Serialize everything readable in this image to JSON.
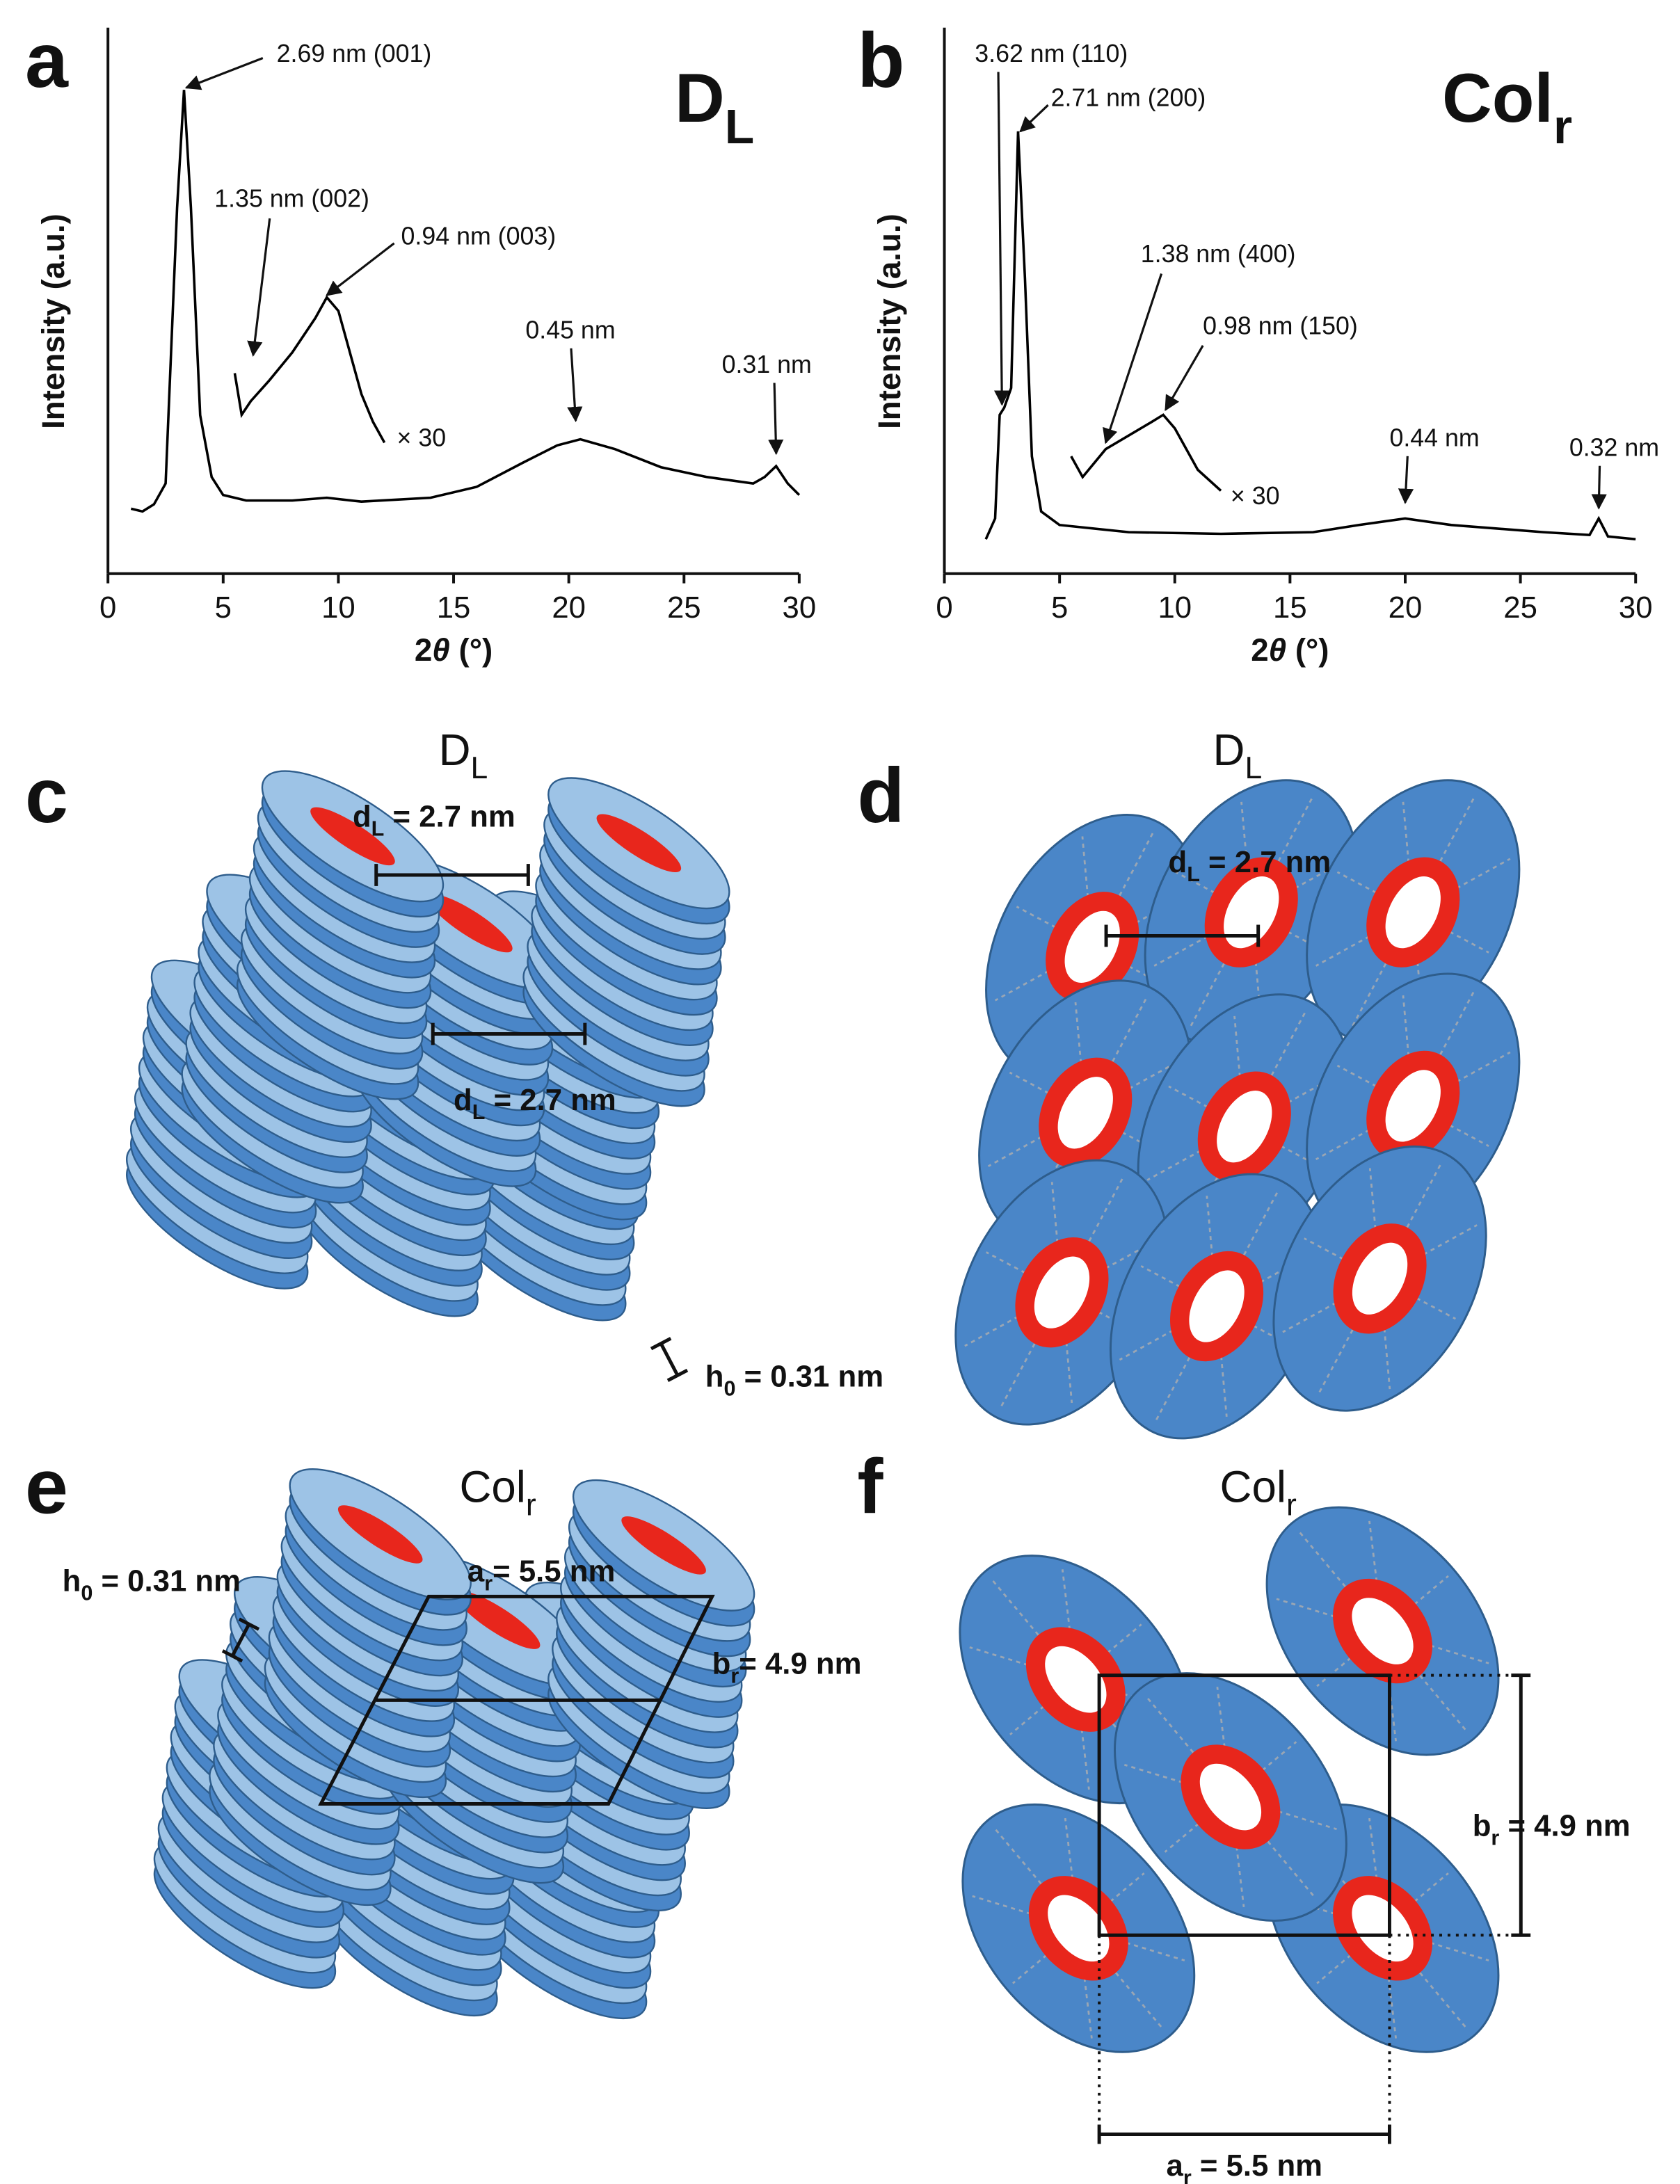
{
  "chart_data": [
    {
      "type": "line",
      "panel": "a",
      "phase": {
        "base": "D",
        "sub": "L"
      },
      "xlabel": {
        "prefix": "2",
        "symbol": "θ",
        "suffix": " (°)"
      },
      "ylabel": "Intensity (a.u.)",
      "xlim": [
        0,
        30
      ],
      "ylim": [
        0,
        100
      ],
      "xticks": [
        0,
        5,
        10,
        15,
        20,
        25,
        30
      ],
      "series": [
        {
          "color": "#000000",
          "x": [
            1.0,
            1.5,
            2.0,
            2.5,
            3.0,
            3.3,
            3.6,
            4.0,
            4.5,
            5,
            6,
            8,
            9.5,
            11,
            14,
            16,
            18,
            19.5,
            20.5,
            22,
            24,
            26,
            28,
            28.5,
            29,
            29.5,
            30
          ],
          "values": [
            11.9,
            11.4,
            12.7,
            16.5,
            67,
            88.6,
            67,
            29,
            17.7,
            14.4,
            13.4,
            13.4,
            13.9,
            13.2,
            13.9,
            15.9,
            20.3,
            23.5,
            24.6,
            22.8,
            19.5,
            17.7,
            16.5,
            17.7,
            19.7,
            16.5,
            14.4
          ]
        },
        {
          "color": "#000000",
          "label": "× 30",
          "x": [
            5.5,
            5.8,
            6.2,
            7,
            8,
            9,
            9.5,
            10,
            10.5,
            11,
            11.5,
            12
          ],
          "values": [
            36.7,
            29.1,
            31.6,
            35.4,
            40.5,
            46.8,
            50.6,
            48.1,
            40.5,
            32.9,
            27.8,
            24
          ]
        }
      ],
      "annotations": [
        {
          "text": "2.69 nm (001)",
          "x": 3.4,
          "y": 89
        },
        {
          "text": "1.35 nm (002)",
          "x": 6.3,
          "y": 40
        },
        {
          "text": "0.94 nm (003)",
          "x": 9.5,
          "y": 51
        },
        {
          "text": "0.45 nm",
          "x": 20.3,
          "y": 28
        },
        {
          "text": "0.31 nm",
          "x": 29,
          "y": 22
        }
      ]
    },
    {
      "type": "line",
      "panel": "b",
      "phase": {
        "base": "Col",
        "sub": "r"
      },
      "xlabel": {
        "prefix": "2",
        "symbol": "θ",
        "suffix": " (°)"
      },
      "ylabel": "Intensity (a.u.)",
      "xlim": [
        0,
        30
      ],
      "ylim": [
        0,
        100
      ],
      "xticks": [
        0,
        5,
        10,
        15,
        20,
        25,
        30
      ],
      "series": [
        {
          "color": "#000000",
          "x": [
            1.8,
            2.2,
            2.4,
            2.6,
            2.9,
            3.2,
            3.5,
            3.8,
            4.2,
            5,
            8,
            12,
            16,
            18,
            20,
            22,
            26,
            28,
            28.4,
            28.8,
            30
          ],
          "values": [
            6.3,
            10.1,
            29.1,
            30.4,
            34,
            81,
            54,
            21.5,
            11.4,
            8.9,
            7.6,
            7.3,
            7.6,
            8.9,
            10.1,
            8.9,
            7.6,
            7.1,
            10.1,
            6.8,
            6.3
          ]
        },
        {
          "color": "#000000",
          "label": "× 30",
          "x": [
            5.5,
            6,
            7,
            8,
            9,
            9.5,
            10,
            11,
            12
          ],
          "values": [
            21.5,
            17.7,
            22.8,
            25.3,
            27.8,
            29.1,
            26.6,
            19,
            15.2
          ]
        }
      ],
      "annotations": [
        {
          "text": "3.62 nm (110)",
          "x": 2.5,
          "y": 31
        },
        {
          "text": "2.71 nm (200)",
          "x": 3.3,
          "y": 81
        },
        {
          "text": "1.38 nm (400)",
          "x": 7,
          "y": 24
        },
        {
          "text": "0.98 nm (150)",
          "x": 9.6,
          "y": 30
        },
        {
          "text": "0.44 nm",
          "x": 20,
          "y": 13
        },
        {
          "text": "0.32 nm",
          "x": 28.4,
          "y": 12
        }
      ]
    }
  ],
  "diagrams": [
    {
      "panel": "c",
      "title": {
        "base": "D",
        "sub": "L"
      },
      "labels": [
        {
          "base": "d",
          "sub": "L",
          "tail": " = 2.7 nm"
        },
        {
          "base": "d",
          "sub": "L",
          "tail": " = 2.7 nm"
        },
        {
          "base": "h",
          "sub": "0",
          "tail": " = 0.31 nm"
        }
      ]
    },
    {
      "panel": "d",
      "title": {
        "base": "D",
        "sub": "L"
      },
      "labels": [
        {
          "base": "d",
          "sub": "L",
          "tail": " = 2.7 nm"
        }
      ]
    },
    {
      "panel": "e",
      "title": {
        "base": "Col",
        "sub": "r"
      },
      "labels": [
        {
          "base": "h",
          "sub": "0",
          "tail": " = 0.31 nm"
        },
        {
          "base": "a",
          "sub": "r",
          "tail": "= 5.5 nm"
        },
        {
          "base": "b",
          "sub": "r",
          "tail": "= 4.9 nm"
        }
      ]
    },
    {
      "panel": "f",
      "title": {
        "base": "Col",
        "sub": "r"
      },
      "labels": [
        {
          "base": "b",
          "sub": "r",
          "tail": " = 4.9 nm"
        },
        {
          "base": "a",
          "sub": "r",
          "tail": " = 5.5 nm"
        }
      ]
    }
  ]
}
